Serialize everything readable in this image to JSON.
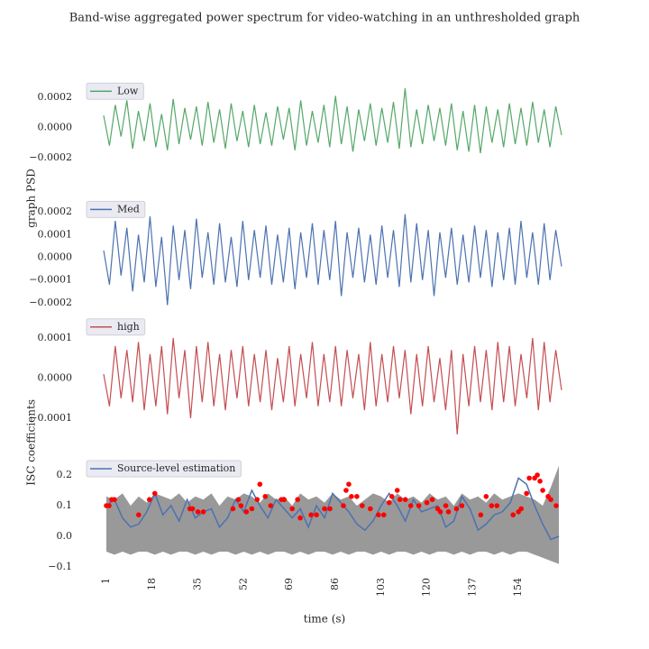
{
  "chart_data": [
    {
      "type": "line",
      "title": "Band-wise aggregated power spectrum for video-watching in an unthresholded graph",
      "ylim": [
        -0.0003,
        0.0003
      ],
      "yticks": [
        {
          "value": -0.0002,
          "label": "−0.0002"
        },
        {
          "value": 0,
          "label": "0.0000"
        },
        0.0002
      ],
      "legend": "upper left",
      "series": [
        {
          "name": "Low",
          "color": "#55a868",
          "values": [
            8e-05,
            -0.00012,
            0.00015,
            -6e-05,
            0.00018,
            -0.00014,
            0.00011,
            -9e-05,
            0.00016,
            -0.00013,
            9e-05,
            -0.00015,
            0.00019,
            -0.00011,
            0.00013,
            -8e-05,
            0.00014,
            -0.00012,
            0.00017,
            -0.0001,
            0.00012,
            -0.00014,
            0.00016,
            -9e-05,
            0.00011,
            -0.00013,
            0.00015,
            -0.00011,
            0.0001,
            -0.00012,
            0.00014,
            -8e-05,
            0.00013,
            -0.00015,
            0.00018,
            -0.00012,
            0.00011,
            -0.0001,
            0.00015,
            -0.00013,
            0.00021,
            -0.00011,
            0.00014,
            -0.00016,
            0.00012,
            -9e-05,
            0.00016,
            -0.00012,
            0.00013,
            -0.0001,
            0.00017,
            -0.00014,
            0.00026,
            -0.00013,
            0.00012,
            -0.00011,
            0.00015,
            -9e-05,
            0.00013,
            -0.00012,
            0.00016,
            -0.00015,
            0.00011,
            -0.00016,
            0.00015,
            -0.00017,
            0.00014,
            -0.0001,
            0.00012,
            -0.00013,
            0.00016,
            -0.00011,
            0.00013,
            -0.00012,
            0.00017,
            -0.0001,
            0.00012,
            -0.00013,
            0.00014,
            -5e-05
          ]
        }
      ]
    },
    {
      "type": "line",
      "ylabel": "graph PSD",
      "ylim": [
        -0.00025,
        0.00025
      ],
      "yticks": [
        {
          "value": -0.0002,
          "label": "−0.0002"
        },
        {
          "value": -0.0001,
          "label": "−0.0001"
        },
        {
          "value": 0,
          "label": "0.0000"
        },
        0.0001,
        0.0002
      ],
      "legend": "upper left",
      "series": [
        {
          "name": "Med",
          "color": "#4c72b0",
          "values": [
            3e-05,
            -0.00012,
            0.00016,
            -8e-05,
            0.00013,
            -0.00015,
            0.0001,
            -0.00011,
            0.00018,
            -0.00013,
            9e-05,
            -0.00021,
            0.00014,
            -0.0001,
            0.00012,
            -0.00014,
            0.00017,
            -9e-05,
            0.00011,
            -0.00012,
            0.00015,
            -0.00011,
            9e-05,
            -0.00013,
            0.00016,
            -0.0001,
            0.00012,
            -9e-05,
            0.00014,
            -0.00012,
            0.0001,
            -0.00011,
            0.00013,
            -0.00014,
            0.00011,
            -9e-05,
            0.00015,
            -0.00012,
            0.00012,
            -0.0001,
            0.00016,
            -0.00017,
            0.00011,
            -9e-05,
            0.00013,
            -0.00011,
            0.0001,
            -0.00012,
            0.00014,
            -9e-05,
            0.00012,
            -0.00013,
            0.00019,
            -0.00011,
            0.00015,
            -0.0001,
            0.00012,
            -0.00017,
            0.00011,
            -9e-05,
            0.00013,
            -0.00012,
            0.0001,
            -0.00011,
            0.00014,
            -9e-05,
            0.00012,
            -0.00013,
            0.00011,
            -0.0001,
            0.00013,
            -0.00012,
            0.00016,
            -9e-05,
            0.00011,
            -0.00012,
            0.00015,
            -0.0001,
            0.00012,
            -4e-05
          ]
        }
      ]
    },
    {
      "type": "line",
      "ylim": [
        -0.00015,
        0.00015
      ],
      "yticks": [
        {
          "value": -0.0001,
          "label": "−0.0001"
        },
        {
          "value": 0,
          "label": "0.0000"
        },
        0.0001
      ],
      "legend": "upper left",
      "series": [
        {
          "name": "high",
          "color": "#c44e52",
          "values": [
            1e-05,
            -7e-05,
            8e-05,
            -5e-05,
            7e-05,
            -6e-05,
            9e-05,
            -8e-05,
            6e-05,
            -7e-05,
            8e-05,
            -9e-05,
            0.0001,
            -5e-05,
            7e-05,
            -0.0001,
            8e-05,
            -6e-05,
            9e-05,
            -7e-05,
            6e-05,
            -8e-05,
            7e-05,
            -5e-05,
            8e-05,
            -7e-05,
            6e-05,
            -6e-05,
            7e-05,
            -8e-05,
            5e-05,
            -6e-05,
            8e-05,
            -7e-05,
            6e-05,
            -5e-05,
            9e-05,
            -7e-05,
            6e-05,
            -6e-05,
            8e-05,
            -7e-05,
            7e-05,
            -5e-05,
            6e-05,
            -8e-05,
            9e-05,
            -7e-05,
            6e-05,
            -6e-05,
            8e-05,
            -5e-05,
            7e-05,
            -9e-05,
            6e-05,
            -7e-05,
            8e-05,
            -6e-05,
            5e-05,
            -8e-05,
            7e-05,
            -0.00014,
            6e-05,
            -7e-05,
            8e-05,
            -6e-05,
            7e-05,
            -8e-05,
            9e-05,
            -6e-05,
            8e-05,
            -7e-05,
            6e-05,
            -5e-05,
            0.0001,
            -8e-05,
            9e-05,
            -6e-05,
            7e-05,
            -3e-05
          ]
        }
      ]
    },
    {
      "type": "line",
      "ylabel": "ISC coefficients",
      "xlabel": "time (s)",
      "xlim": [
        0,
        170
      ],
      "xticks": [
        1,
        18,
        35,
        52,
        69,
        86,
        103,
        120,
        137,
        154
      ],
      "ylim": [
        -0.1,
        0.25
      ],
      "yticks": [
        {
          "value": -0.1,
          "label": "−0.1"
        },
        {
          "value": 0,
          "label": "0.0"
        },
        0.1,
        0.2
      ],
      "legend": "upper left",
      "x": [
        1,
        4,
        7,
        10,
        13,
        16,
        19,
        22,
        25,
        28,
        31,
        34,
        37,
        40,
        43,
        46,
        49,
        52,
        55,
        58,
        61,
        64,
        67,
        70,
        73,
        76,
        79,
        82,
        85,
        88,
        91,
        94,
        97,
        100,
        103,
        106,
        109,
        112,
        115,
        118,
        121,
        124,
        127,
        130,
        133,
        136,
        139,
        142,
        145,
        148,
        151,
        154,
        157,
        160,
        163,
        166,
        169
      ],
      "series": [
        {
          "name": "Source-level estimation",
          "color": "#4c72b0",
          "values": [
            0.1,
            0.12,
            0.06,
            0.03,
            0.04,
            0.08,
            0.14,
            0.07,
            0.1,
            0.05,
            0.12,
            0.06,
            0.08,
            0.09,
            0.03,
            0.06,
            0.12,
            0.08,
            0.15,
            0.1,
            0.06,
            0.12,
            0.09,
            0.06,
            0.09,
            0.03,
            0.1,
            0.06,
            0.14,
            0.11,
            0.08,
            0.04,
            0.02,
            0.05,
            0.1,
            0.14,
            0.1,
            0.05,
            0.12,
            0.08,
            0.09,
            0.1,
            0.03,
            0.05,
            0.13,
            0.09,
            0.02,
            0.04,
            0.07,
            0.08,
            0.11,
            0.19,
            0.17,
            0.1,
            0.04,
            -0.01,
            0.0
          ]
        }
      ],
      "band": {
        "color": "#999999",
        "upper": [
          0.13,
          0.12,
          0.14,
          0.1,
          0.13,
          0.11,
          0.14,
          0.13,
          0.12,
          0.14,
          0.11,
          0.13,
          0.12,
          0.14,
          0.1,
          0.13,
          0.12,
          0.14,
          0.13,
          0.11,
          0.14,
          0.12,
          0.13,
          0.1,
          0.14,
          0.12,
          0.13,
          0.11,
          0.14,
          0.12,
          0.13,
          0.1,
          0.12,
          0.14,
          0.13,
          0.11,
          0.14,
          0.12,
          0.13,
          0.11,
          0.14,
          0.12,
          0.13,
          0.1,
          0.14,
          0.12,
          0.13,
          0.11,
          0.14,
          0.12,
          0.13,
          0.14,
          0.13,
          0.12,
          0.1,
          0.16,
          0.23
        ],
        "lower": [
          -0.05,
          -0.06,
          -0.05,
          -0.06,
          -0.05,
          -0.05,
          -0.06,
          -0.05,
          -0.06,
          -0.05,
          -0.05,
          -0.06,
          -0.05,
          -0.06,
          -0.05,
          -0.05,
          -0.06,
          -0.05,
          -0.06,
          -0.05,
          -0.06,
          -0.05,
          -0.05,
          -0.06,
          -0.05,
          -0.06,
          -0.05,
          -0.05,
          -0.06,
          -0.05,
          -0.06,
          -0.05,
          -0.05,
          -0.06,
          -0.05,
          -0.06,
          -0.05,
          -0.05,
          -0.06,
          -0.05,
          -0.06,
          -0.05,
          -0.05,
          -0.06,
          -0.05,
          -0.06,
          -0.05,
          -0.05,
          -0.06,
          -0.05,
          -0.06,
          -0.05,
          -0.05,
          -0.06,
          -0.07,
          -0.08,
          -0.09
        ]
      },
      "markers": {
        "color": "#ff0000",
        "x": [
          1,
          2,
          3,
          4,
          13,
          17,
          19,
          32,
          33,
          35,
          37,
          48,
          50,
          51,
          53,
          55,
          57,
          58,
          60,
          62,
          66,
          67,
          70,
          72,
          73,
          77,
          79,
          82,
          84,
          89,
          90,
          91,
          92,
          94,
          96,
          99,
          102,
          104,
          106,
          107,
          109,
          110,
          112,
          114,
          117,
          120,
          122,
          124,
          125,
          127,
          128,
          131,
          133,
          140,
          142,
          144,
          146,
          152,
          154,
          155,
          157,
          158,
          160,
          161,
          162,
          163,
          165,
          166,
          168
        ],
        "values": [
          0.1,
          0.1,
          0.12,
          0.12,
          0.07,
          0.12,
          0.14,
          0.09,
          0.09,
          0.08,
          0.08,
          0.09,
          0.12,
          0.1,
          0.08,
          0.09,
          0.12,
          0.17,
          0.13,
          0.1,
          0.12,
          0.12,
          0.09,
          0.12,
          0.06,
          0.07,
          0.07,
          0.09,
          0.09,
          0.1,
          0.15,
          0.17,
          0.13,
          0.13,
          0.1,
          0.09,
          0.07,
          0.07,
          0.11,
          0.13,
          0.15,
          0.12,
          0.12,
          0.1,
          0.1,
          0.11,
          0.12,
          0.09,
          0.08,
          0.1,
          0.08,
          0.09,
          0.1,
          0.07,
          0.13,
          0.1,
          0.1,
          0.07,
          0.08,
          0.09,
          0.14,
          0.19,
          0.19,
          0.2,
          0.18,
          0.15,
          0.13,
          0.12,
          0.1
        ]
      }
    }
  ]
}
